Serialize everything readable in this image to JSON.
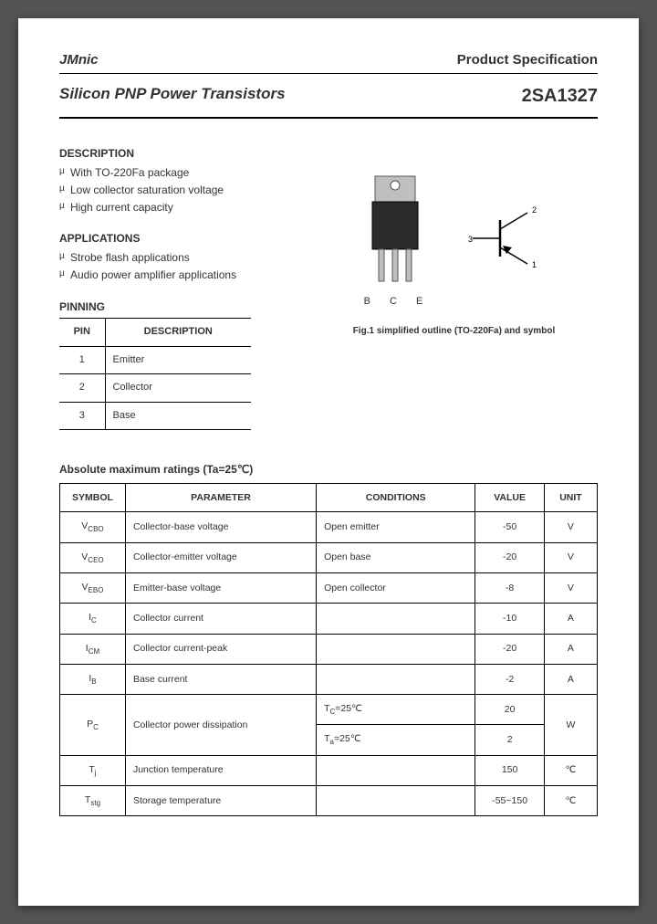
{
  "header": {
    "brand": "JMnic",
    "spec_label": "Product Specification"
  },
  "title": {
    "left": "Silicon PNP Power Transistors",
    "right": "2SA1327"
  },
  "description": {
    "heading": "DESCRIPTION",
    "items": [
      "With TO-220Fa package",
      "Low collector saturation voltage",
      "High current capacity"
    ]
  },
  "applications": {
    "heading": "APPLICATIONS",
    "items": [
      "Strobe flash applications",
      "Audio power amplifier applications"
    ]
  },
  "pinning": {
    "heading": "PINNING",
    "col1": "PIN",
    "col2": "DESCRIPTION",
    "rows": [
      {
        "pin": "1",
        "desc": "Emitter"
      },
      {
        "pin": "2",
        "desc": "Collector"
      },
      {
        "pin": "3",
        "desc": "Base"
      }
    ]
  },
  "figure": {
    "pin_labels": "B C E",
    "sym_pins": {
      "p1": "1",
      "p2": "2",
      "p3": "3"
    },
    "caption": "Fig.1 simplified outline (TO-220Fa) and symbol"
  },
  "ratings": {
    "heading": "Absolute maximum ratings (Ta=25℃)",
    "cols": {
      "symbol": "SYMBOL",
      "parameter": "PARAMETER",
      "conditions": "CONDITIONS",
      "value": "VALUE",
      "unit": "UNIT"
    },
    "rows": [
      {
        "sym": "V<sub>CBO</sub>",
        "param": "Collector-base voltage",
        "cond": "Open emitter",
        "val": "-50",
        "unit": "V"
      },
      {
        "sym": "V<sub>CEO</sub>",
        "param": "Collector-emitter voltage",
        "cond": "Open base",
        "val": "-20",
        "unit": "V"
      },
      {
        "sym": "V<sub>EBO</sub>",
        "param": "Emitter-base voltage",
        "cond": "Open collector",
        "val": "-8",
        "unit": "V"
      },
      {
        "sym": "I<sub>C</sub>",
        "param": "Collector current",
        "cond": "",
        "val": "-10",
        "unit": "A"
      },
      {
        "sym": "I<sub>CM</sub>",
        "param": "Collector current-peak",
        "cond": "",
        "val": "-20",
        "unit": "A"
      },
      {
        "sym": "I<sub>B</sub>",
        "param": "Base current",
        "cond": "",
        "val": "-2",
        "unit": "A"
      }
    ],
    "pc": {
      "sym": "P<sub>C</sub>",
      "param": "Collector power dissipation",
      "cond1": "T<sub>C</sub>=25℃",
      "val1": "20",
      "cond2": "T<sub>a</sub>=25℃",
      "val2": "2",
      "unit": "W"
    },
    "tail": [
      {
        "sym": "T<sub>j</sub>",
        "param": "Junction temperature",
        "cond": "",
        "val": "150",
        "unit": "℃"
      },
      {
        "sym": "T<sub>stg</sub>",
        "param": "Storage temperature",
        "cond": "",
        "val": "-55~150",
        "unit": "℃"
      }
    ]
  },
  "style": {
    "page_bg": "#ffffff",
    "body_bg": "#545454",
    "text_color": "#333333",
    "border_color": "#000000"
  }
}
